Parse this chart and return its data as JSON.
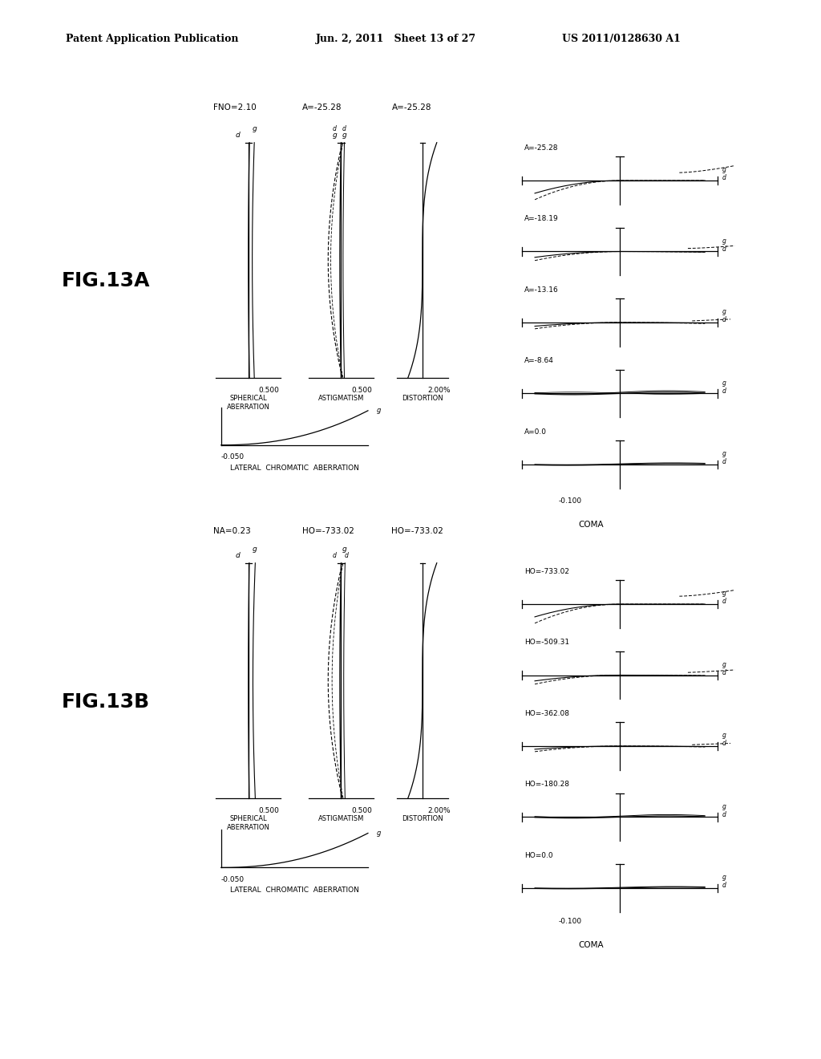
{
  "header_left": "Patent Application Publication",
  "header_mid": "Jun. 2, 2011   Sheet 13 of 27",
  "header_right": "US 2011/0128630 A1",
  "fig_a_label": "FIG.13A",
  "fig_b_label": "FIG.13B",
  "figA_params": {
    "fno": "FNO=2.10",
    "astig_label": "A=-25.28",
    "dist_label": "A=-25.28",
    "coma_xlabel": "-0.100",
    "coma_label": "COMA",
    "lca_xlabel": "-0.050",
    "lca_label": "LATERAL  CHROMATIC  ABERRATION",
    "coma_levels": [
      "A=-25.28",
      "A=-18.19",
      "A=-13.16",
      "A=-8.64",
      "A=0.0"
    ]
  },
  "figB_params": {
    "na": "NA=0.23",
    "astig_label": "HO=-733.02",
    "dist_label": "HO=-733.02",
    "coma_xlabel": "-0.100",
    "coma_label": "COMA",
    "lca_xlabel": "-0.050",
    "lca_label": "LATERAL  CHROMATIC  ABERRATION",
    "coma_levels": [
      "HO=-733.02",
      "HO=-509.31",
      "HO=-362.08",
      "HO=-180.28",
      "HO=0.0"
    ]
  },
  "bg_color": "#ffffff"
}
